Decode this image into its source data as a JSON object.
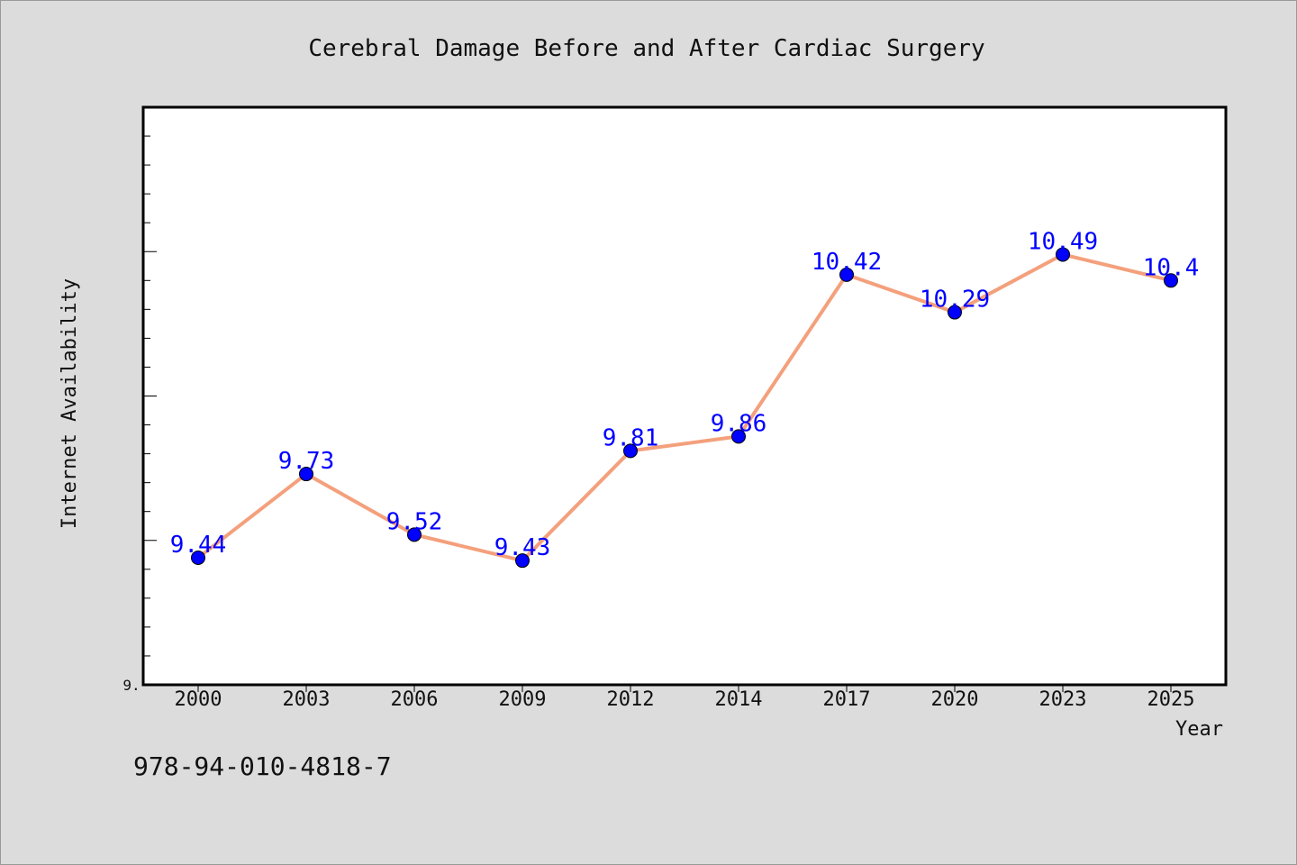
{
  "chart_data": {
    "type": "line",
    "title": "Cerebral Damage Before and After Cardiac Surgery",
    "xlabel": "Year",
    "ylabel": "Internet Availability",
    "categories": [
      "2000",
      "2003",
      "2006",
      "2009",
      "2012",
      "2014",
      "2017",
      "2020",
      "2023",
      "2025"
    ],
    "values": [
      9.44,
      9.73,
      9.52,
      9.43,
      9.81,
      9.86,
      10.42,
      10.29,
      10.49,
      10.4
    ],
    "data_labels": [
      "9.44",
      "9.73",
      "9.52",
      "9.43",
      "9.81",
      "9.86",
      "10.42",
      "10.29",
      "10.49",
      "10.4"
    ],
    "ylim": [
      9.0,
      11.0
    ],
    "y_tick_label": "9.",
    "grid": false,
    "legend": "none",
    "colors": {
      "line": "#f4a07c",
      "marker": "#0000ff",
      "labels": "#0000ff",
      "background": "#dcdcdc",
      "plot_bg": "#ffffff"
    }
  },
  "footer": {
    "isbn": "978-94-010-4818-7"
  }
}
